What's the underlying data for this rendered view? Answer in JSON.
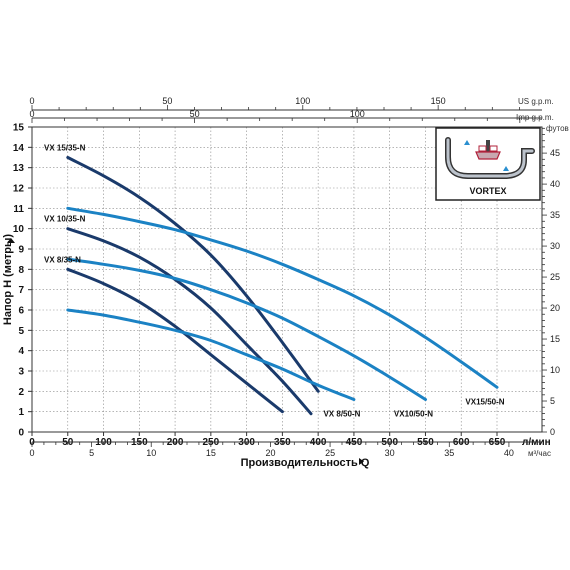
{
  "chart_data": {
    "type": "line",
    "title": "",
    "xlabel": "Производительность  Q",
    "ylabel": "Напор  H (метры)",
    "xlim": [
      0,
      700
    ],
    "ylim": [
      0,
      15
    ],
    "x_unit": "л/мин",
    "x_ticks": [
      0,
      50,
      100,
      150,
      200,
      250,
      300,
      350,
      400,
      450,
      500,
      550,
      600,
      650
    ],
    "y_ticks": [
      0,
      1,
      2,
      3,
      4,
      5,
      6,
      7,
      8,
      9,
      10,
      11,
      12,
      13,
      14,
      15
    ],
    "secondary_axes": {
      "top_gpm_us": {
        "unit": "US g.p.m.",
        "ticks": [
          0,
          50,
          100,
          150
        ]
      },
      "top_gpm_imp": {
        "unit": "Imp g.p.m.",
        "ticks": [
          0,
          50,
          100
        ]
      },
      "bottom_m3h": {
        "unit": "м³/час",
        "ticks": [
          0,
          5,
          10,
          15,
          20,
          25,
          30,
          35,
          40
        ]
      },
      "right_feet": {
        "unit": "футов",
        "ticks": [
          0,
          5,
          10,
          15,
          20,
          25,
          30,
          35,
          40,
          45
        ]
      }
    },
    "grid": true,
    "series": [
      {
        "name": "VX 15/35-N",
        "color": "#1a3a6b",
        "x": [
          50,
          100,
          150,
          200,
          250,
          300,
          350,
          400
        ],
        "y": [
          13.5,
          12.6,
          11.55,
          10.25,
          8.7,
          6.7,
          4.4,
          2.0
        ]
      },
      {
        "name": "VX 10/35-N",
        "color": "#1a3a6b",
        "x": [
          50,
          100,
          150,
          200,
          250,
          300,
          350,
          390
        ],
        "y": [
          10.0,
          9.4,
          8.6,
          7.5,
          6.1,
          4.3,
          2.5,
          0.9
        ]
      },
      {
        "name": "VX 8/35-N",
        "color": "#1a3a6b",
        "x": [
          50,
          100,
          150,
          200,
          250,
          300,
          350
        ],
        "y": [
          8.0,
          7.3,
          6.4,
          5.2,
          3.8,
          2.4,
          1.0
        ]
      },
      {
        "name": "VX 8/50-N",
        "color": "#1b82c4",
        "x": [
          50,
          100,
          150,
          200,
          250,
          300,
          350,
          400,
          450
        ],
        "y": [
          6.0,
          5.75,
          5.4,
          5.0,
          4.5,
          3.8,
          3.1,
          2.3,
          1.6
        ]
      },
      {
        "name": "VX10/50-N",
        "color": "#1b82c4",
        "x": [
          50,
          100,
          150,
          200,
          250,
          300,
          350,
          400,
          450,
          500,
          550
        ],
        "y": [
          8.5,
          8.25,
          7.95,
          7.55,
          7.0,
          6.35,
          5.6,
          4.7,
          3.75,
          2.7,
          1.6
        ]
      },
      {
        "name": "VX15/50-N",
        "color": "#1b82c4",
        "x": [
          50,
          100,
          150,
          200,
          250,
          300,
          350,
          400,
          450,
          500,
          550,
          600,
          650
        ],
        "y": [
          11.0,
          10.7,
          10.35,
          9.95,
          9.45,
          8.9,
          8.25,
          7.5,
          6.7,
          5.75,
          4.65,
          3.45,
          2.2
        ]
      }
    ]
  },
  "legend_box": {
    "label": "VORTEX"
  }
}
